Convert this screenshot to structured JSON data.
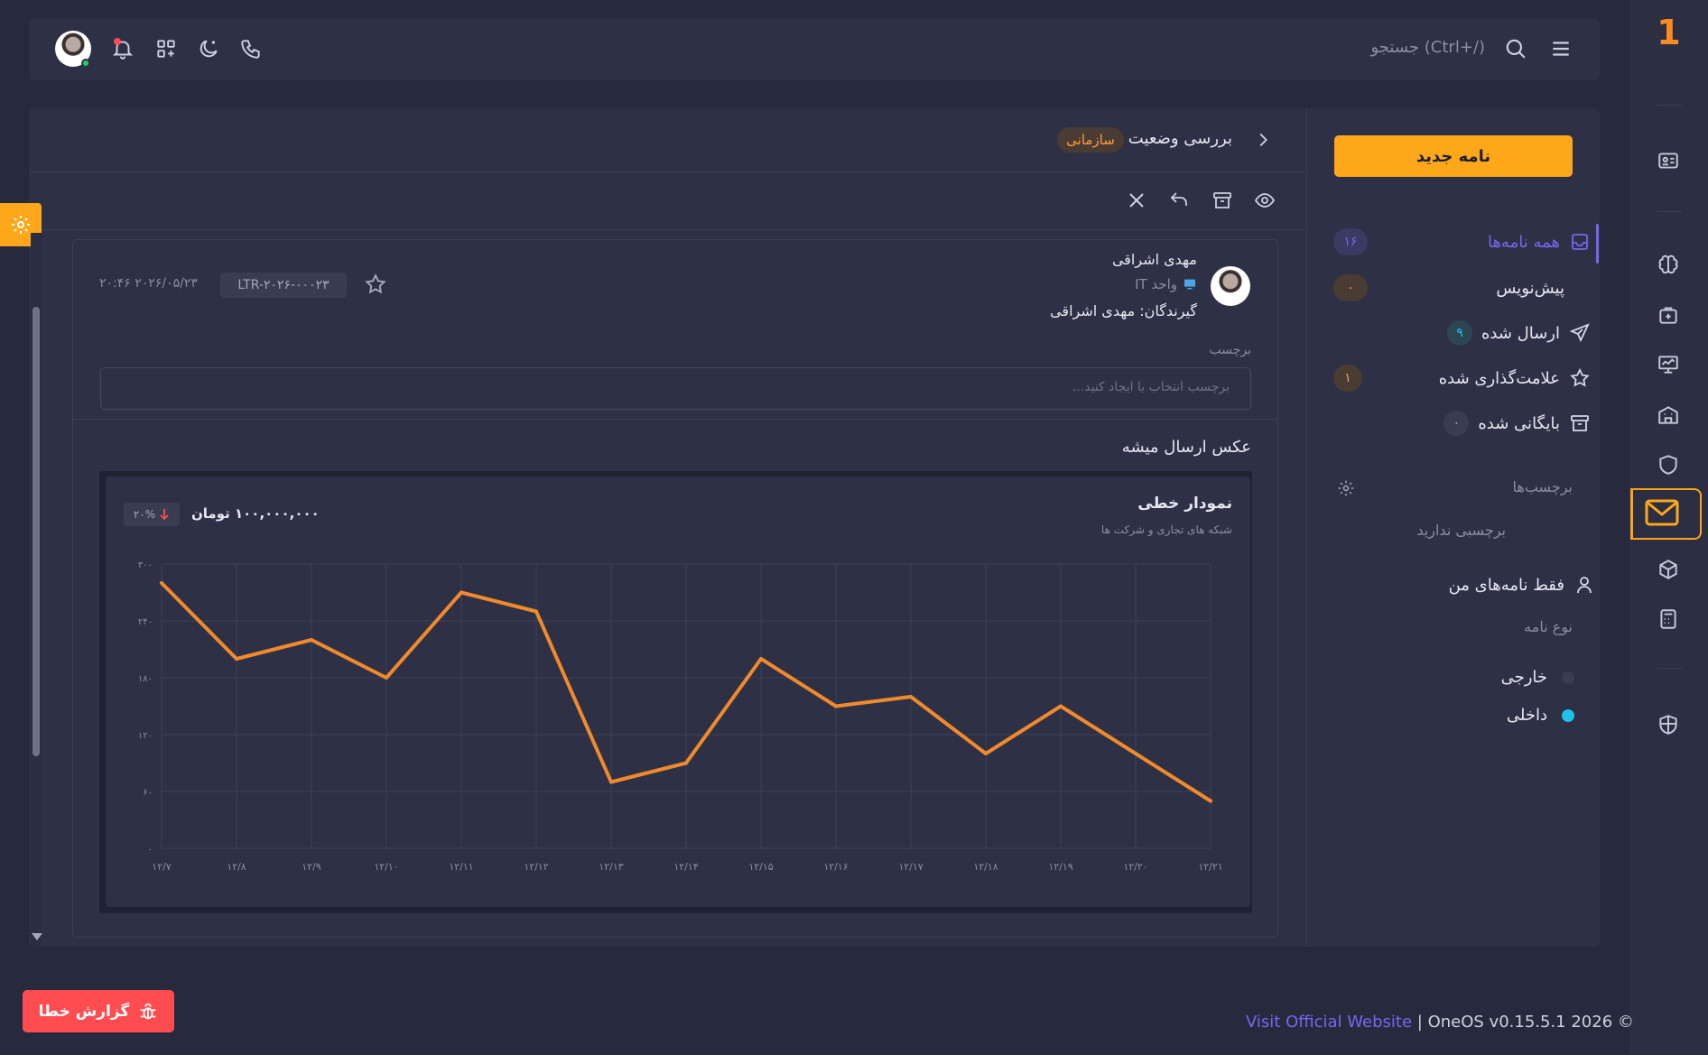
{
  "app": {
    "logo": "1"
  },
  "topbar": {
    "search_placeholder": "جستجو (Ctrl+/)"
  },
  "folders": {
    "new_letter": "نامه جدید",
    "items": [
      {
        "label": "همه نامه‌ها",
        "count": "۱۶"
      },
      {
        "label": "پیش‌نویس",
        "count": "۰"
      },
      {
        "label": "ارسال شده",
        "count": "۹"
      },
      {
        "label": "علامت‌گذاری شده",
        "count": "۱"
      },
      {
        "label": "بایگانی شده",
        "count": "۰"
      }
    ],
    "tags_title": "برچسب‌ها",
    "tags_empty": "برچسبی ندارید",
    "only_mine": "فقط نامه‌های من",
    "type_title": "نوع نامه",
    "types": [
      {
        "label": "خارجی",
        "color": "#3a3d52"
      },
      {
        "label": "داخلی",
        "color": "#1ec2e8"
      }
    ]
  },
  "letter": {
    "subject": "بررسی وضعیت",
    "category": "سازمانی",
    "sender_name": "مهدی اشراقی",
    "unit": "واحد IT",
    "recipients": "گیرندگان: مهدی اشراقی",
    "code": "LTR-۲۰۲۶-۰۰۰۲۳",
    "datetime": "۲۰۲۶/۰۵/۲۳ ۲۰:۴۶",
    "tag_label": "برچسب",
    "tag_placeholder": "برچسب انتخاب یا ایجاد کنید...",
    "body": "عکس ارسال میشه"
  },
  "chart_data": {
    "type": "line",
    "title": "نمودار خطی",
    "subtitle": "شبکه های تجاری و شرکت ها",
    "total": "۱۰۰,۰۰۰,۰۰۰ تومان",
    "change": "۲۰%",
    "categories": [
      "۱۲/۷",
      "۱۲/۸",
      "۱۲/۹",
      "۱۲/۱۰",
      "۱۲/۱۱",
      "۱۲/۱۲",
      "۱۲/۱۳",
      "۱۲/۱۴",
      "۱۲/۱۵",
      "۱۲/۱۶",
      "۱۲/۱۷",
      "۱۲/۱۸",
      "۱۲/۱۹",
      "۱۲/۲۰",
      "۱۲/۲۱"
    ],
    "yticks": [
      "۰",
      "۶۰",
      "۱۲۰",
      "۱۸۰",
      "۲۴۰",
      "۳۰۰"
    ],
    "ylim": [
      0,
      300
    ],
    "values": [
      280,
      200,
      220,
      180,
      270,
      250,
      70,
      90,
      200,
      150,
      160,
      100,
      150,
      100,
      50
    ],
    "color": "#f08a2c"
  },
  "footer": {
    "report_bug": "گزارش خطا",
    "link": "Visit Official Website",
    "version": " | OneOS v0.15.5.1 2026 ©"
  }
}
